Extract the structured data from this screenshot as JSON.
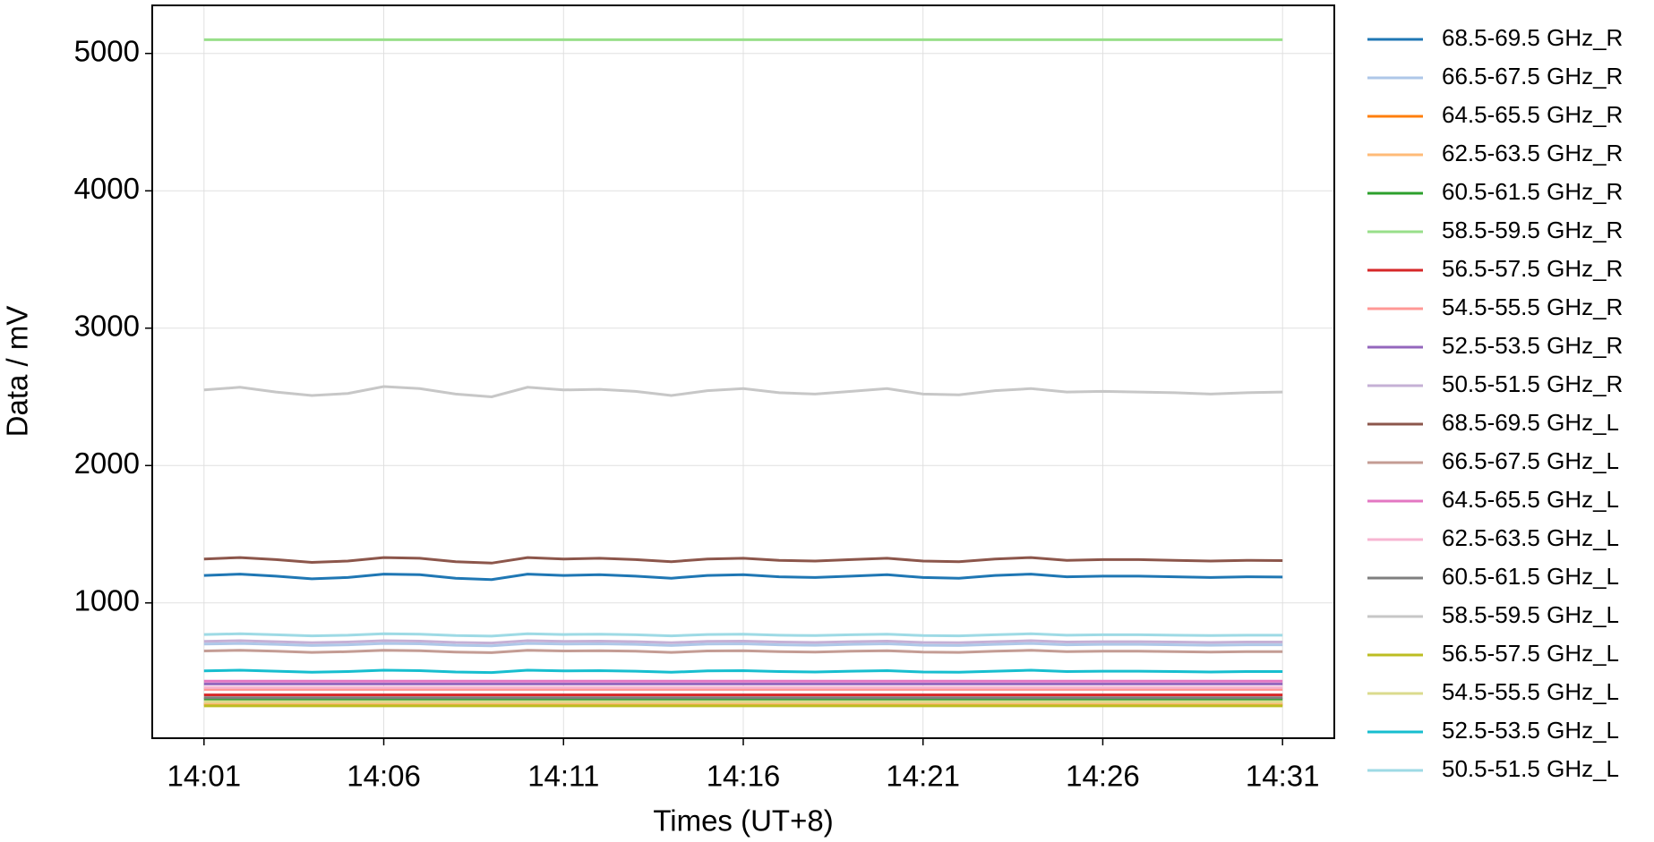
{
  "chart_data": {
    "type": "line",
    "xlabel": "Times (UT+8)",
    "ylabel": "Data / mV",
    "x": [
      "14:01",
      "14:02",
      "14:03",
      "14:04",
      "14:05",
      "14:06",
      "14:07",
      "14:08",
      "14:09",
      "14:10",
      "14:11",
      "14:12",
      "14:13",
      "14:14",
      "14:15",
      "14:16",
      "14:17",
      "14:18",
      "14:19",
      "14:20",
      "14:21",
      "14:22",
      "14:23",
      "14:24",
      "14:25",
      "14:26",
      "14:27",
      "14:28",
      "14:29",
      "14:30",
      "14:31"
    ],
    "xticks": [
      "14:01",
      "14:06",
      "14:11",
      "14:16",
      "14:21",
      "14:26",
      "14:31"
    ],
    "ylim": [
      15,
      5350
    ],
    "yticks": [
      1000,
      2000,
      3000,
      4000,
      5000
    ],
    "grid": true,
    "legend": "outside-right",
    "series": [
      {
        "name": "68.5-69.5 GHz_R",
        "color": "#1f77b4",
        "values": [
          1200,
          1210,
          1195,
          1175,
          1185,
          1210,
          1205,
          1180,
          1170,
          1210,
          1200,
          1205,
          1195,
          1180,
          1200,
          1205,
          1190,
          1185,
          1195,
          1205,
          1185,
          1180,
          1200,
          1210,
          1190,
          1195,
          1195,
          1190,
          1185,
          1190,
          1188
        ]
      },
      {
        "name": "66.5-67.5 GHz_R",
        "color": "#aec7e8",
        "values": [
          700,
          705,
          698,
          690,
          695,
          705,
          702,
          692,
          688,
          705,
          700,
          702,
          698,
          690,
          700,
          702,
          695,
          692,
          698,
          702,
          692,
          690,
          698,
          705,
          695,
          698,
          698,
          695,
          692,
          695,
          695
        ]
      },
      {
        "name": "64.5-65.5 GHz_R",
        "color": "#ff7f0e",
        "values": [
          260,
          260,
          260,
          260,
          260,
          260,
          260,
          260,
          260,
          260,
          260,
          260,
          260,
          260,
          260,
          260,
          260,
          260,
          260,
          260,
          260,
          260,
          260,
          260,
          260,
          260,
          260,
          260,
          260,
          260,
          260
        ]
      },
      {
        "name": "62.5-63.5 GHz_R",
        "color": "#ffbb78",
        "values": [
          270,
          270,
          270,
          270,
          270,
          270,
          270,
          270,
          270,
          270,
          270,
          270,
          270,
          270,
          270,
          270,
          270,
          270,
          270,
          270,
          270,
          270,
          270,
          270,
          270,
          270,
          270,
          270,
          270,
          270,
          270
        ]
      },
      {
        "name": "60.5-61.5 GHz_R",
        "color": "#2ca02c",
        "values": [
          300,
          300,
          300,
          300,
          300,
          300,
          300,
          300,
          300,
          300,
          300,
          300,
          300,
          300,
          300,
          300,
          300,
          300,
          300,
          300,
          300,
          300,
          300,
          300,
          300,
          300,
          300,
          300,
          300,
          300,
          300
        ]
      },
      {
        "name": "58.5-59.5 GHz_R",
        "color": "#98df8a",
        "values": [
          5100,
          5100,
          5100,
          5100,
          5100,
          5100,
          5100,
          5100,
          5100,
          5100,
          5100,
          5100,
          5100,
          5100,
          5100,
          5100,
          5100,
          5100,
          5100,
          5100,
          5100,
          5100,
          5100,
          5100,
          5100,
          5100,
          5100,
          5100,
          5100,
          5100,
          5100
        ]
      },
      {
        "name": "56.5-57.5 GHz_R",
        "color": "#d62728",
        "values": [
          330,
          330,
          330,
          330,
          330,
          330,
          330,
          330,
          330,
          330,
          330,
          330,
          330,
          330,
          330,
          330,
          330,
          330,
          330,
          330,
          330,
          330,
          330,
          330,
          330,
          330,
          330,
          330,
          330,
          330,
          330
        ]
      },
      {
        "name": "54.5-55.5 GHz_R",
        "color": "#ff9896",
        "values": [
          370,
          370,
          370,
          370,
          370,
          370,
          370,
          370,
          370,
          370,
          370,
          370,
          370,
          370,
          370,
          370,
          370,
          370,
          370,
          370,
          370,
          370,
          370,
          370,
          370,
          370,
          370,
          370,
          370,
          370,
          370
        ]
      },
      {
        "name": "52.5-53.5 GHz_R",
        "color": "#9467bd",
        "values": [
          410,
          410,
          410,
          410,
          410,
          410,
          410,
          410,
          410,
          410,
          410,
          410,
          410,
          410,
          410,
          410,
          410,
          410,
          410,
          410,
          410,
          410,
          410,
          410,
          410,
          410,
          410,
          410,
          410,
          410,
          410
        ]
      },
      {
        "name": "50.5-51.5 GHz_R",
        "color": "#c5b0d5",
        "values": [
          720,
          725,
          718,
          710,
          715,
          725,
          722,
          712,
          708,
          725,
          720,
          722,
          718,
          710,
          720,
          722,
          715,
          712,
          718,
          722,
          712,
          710,
          718,
          725,
          715,
          718,
          718,
          715,
          712,
          715,
          715
        ]
      },
      {
        "name": "68.5-69.5 GHz_L",
        "color": "#8c564b",
        "values": [
          1320,
          1330,
          1315,
          1295,
          1305,
          1330,
          1325,
          1300,
          1290,
          1330,
          1320,
          1325,
          1315,
          1300,
          1320,
          1325,
          1310,
          1305,
          1315,
          1325,
          1305,
          1300,
          1320,
          1330,
          1310,
          1315,
          1315,
          1310,
          1305,
          1310,
          1308
        ]
      },
      {
        "name": "66.5-67.5 GHz_L",
        "color": "#c49c94",
        "values": [
          650,
          655,
          648,
          640,
          645,
          655,
          652,
          642,
          638,
          655,
          650,
          652,
          648,
          640,
          650,
          652,
          645,
          642,
          648,
          652,
          642,
          640,
          648,
          655,
          645,
          648,
          648,
          645,
          642,
          645,
          645
        ]
      },
      {
        "name": "64.5-65.5 GHz_L",
        "color": "#e377c2",
        "values": [
          430,
          430,
          430,
          430,
          430,
          430,
          430,
          430,
          430,
          430,
          430,
          430,
          430,
          430,
          430,
          430,
          430,
          430,
          430,
          430,
          430,
          430,
          430,
          430,
          430,
          430,
          430,
          430,
          430,
          430,
          430
        ]
      },
      {
        "name": "62.5-63.5 GHz_L",
        "color": "#f7b6d2",
        "values": [
          385,
          385,
          385,
          385,
          385,
          385,
          385,
          385,
          385,
          385,
          385,
          385,
          385,
          385,
          385,
          385,
          385,
          385,
          385,
          385,
          385,
          385,
          385,
          385,
          385,
          385,
          385,
          385,
          385,
          385,
          385
        ]
      },
      {
        "name": "60.5-61.5 GHz_L",
        "color": "#7f7f7f",
        "values": [
          310,
          310,
          310,
          310,
          310,
          310,
          310,
          310,
          310,
          310,
          310,
          310,
          310,
          310,
          310,
          310,
          310,
          310,
          310,
          310,
          310,
          310,
          310,
          310,
          310,
          310,
          310,
          310,
          310,
          310,
          310
        ]
      },
      {
        "name": "58.5-59.5 GHz_L",
        "color": "#c7c7c7",
        "values": [
          2550,
          2570,
          2535,
          2510,
          2525,
          2575,
          2560,
          2520,
          2500,
          2570,
          2550,
          2555,
          2540,
          2510,
          2545,
          2560,
          2530,
          2520,
          2540,
          2560,
          2520,
          2515,
          2545,
          2560,
          2535,
          2540,
          2535,
          2530,
          2520,
          2530,
          2535
        ]
      },
      {
        "name": "56.5-57.5 GHz_L",
        "color": "#bcbd22",
        "values": [
          250,
          250,
          250,
          250,
          250,
          250,
          250,
          250,
          250,
          250,
          250,
          250,
          250,
          250,
          250,
          250,
          250,
          250,
          250,
          250,
          250,
          250,
          250,
          250,
          250,
          250,
          250,
          250,
          250,
          250,
          250
        ]
      },
      {
        "name": "54.5-55.5 GHz_L",
        "color": "#dbdb8d",
        "values": [
          280,
          280,
          280,
          280,
          280,
          280,
          280,
          280,
          280,
          280,
          280,
          280,
          280,
          280,
          280,
          280,
          280,
          280,
          280,
          280,
          280,
          280,
          280,
          280,
          280,
          280,
          280,
          280,
          280,
          280,
          280
        ]
      },
      {
        "name": "52.5-53.5 GHz_L",
        "color": "#17becf",
        "values": [
          505,
          510,
          503,
          495,
          500,
          510,
          507,
          497,
          493,
          510,
          505,
          507,
          503,
          495,
          505,
          507,
          500,
          497,
          503,
          507,
          497,
          495,
          503,
          510,
          500,
          503,
          503,
          500,
          497,
          500,
          500
        ]
      },
      {
        "name": "50.5-51.5 GHz_L",
        "color": "#9edae5",
        "values": [
          770,
          775,
          768,
          760,
          765,
          775,
          772,
          762,
          758,
          775,
          770,
          772,
          768,
          760,
          770,
          772,
          765,
          762,
          768,
          772,
          762,
          760,
          768,
          775,
          765,
          768,
          768,
          765,
          762,
          765,
          765
        ]
      }
    ]
  }
}
